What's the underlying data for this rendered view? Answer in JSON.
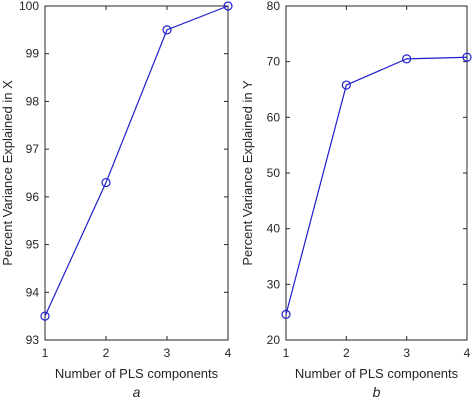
{
  "chart_data": [
    {
      "type": "line",
      "panel_label": "a",
      "title": "",
      "xlabel": "Number of PLS components",
      "ylabel": "Percent Variance Explained in X",
      "x": [
        1,
        2,
        3,
        4
      ],
      "series": [
        {
          "values": [
            93.5,
            96.3,
            99.5,
            100
          ]
        }
      ],
      "xlim": [
        1,
        4
      ],
      "ylim": [
        93,
        100
      ],
      "xticks": [
        1,
        2,
        3,
        4
      ],
      "yticks": [
        93,
        94,
        95,
        96,
        97,
        98,
        99,
        100
      ],
      "grid": false,
      "marker": "circle",
      "line_color": "#1f1fcc"
    },
    {
      "type": "line",
      "panel_label": "b",
      "title": "",
      "xlabel": "Number of PLS components",
      "ylabel": "Percent Variance Explained in Y",
      "x": [
        1,
        2,
        3,
        4
      ],
      "series": [
        {
          "values": [
            24.6,
            65.8,
            70.5,
            70.8
          ]
        }
      ],
      "xlim": [
        1,
        4
      ],
      "ylim": [
        20,
        80
      ],
      "xticks": [
        1,
        2,
        3,
        4
      ],
      "yticks": [
        20,
        30,
        40,
        50,
        60,
        70,
        80
      ],
      "grid": false,
      "marker": "circle",
      "line_color": "#1f1fcc"
    }
  ]
}
